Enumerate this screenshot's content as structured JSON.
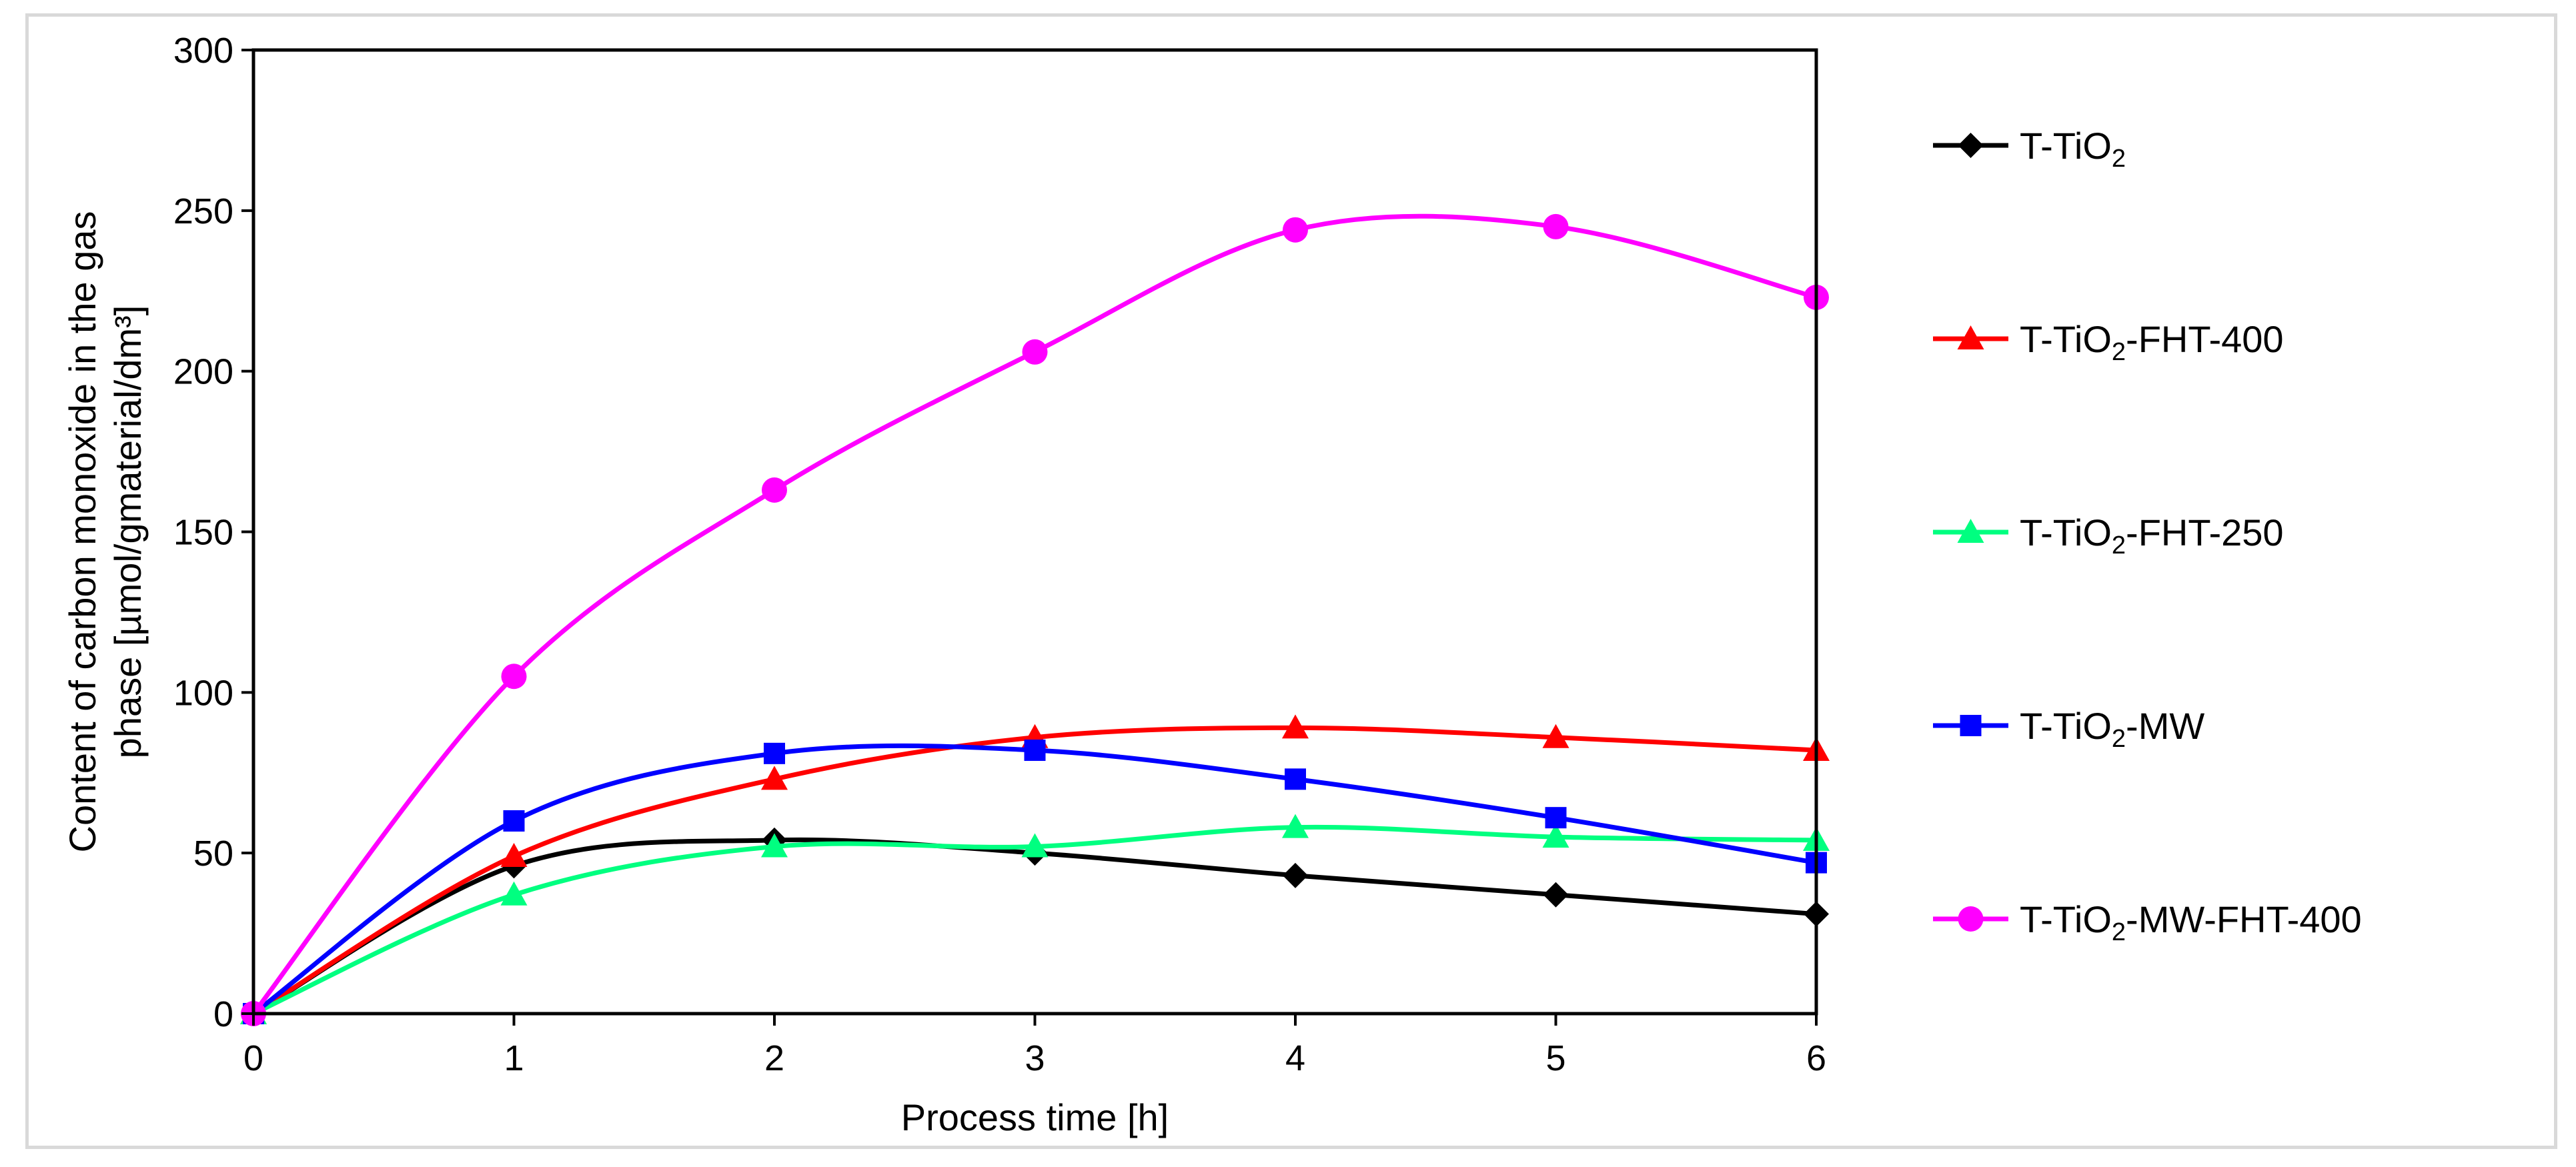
{
  "chart_data": {
    "type": "line",
    "title": "",
    "xlabel": "Process time [h]",
    "ylabel_lines": [
      "Content of carbon monoxide in the gas",
      "phase [µmol/gmaterial/dm³]"
    ],
    "x": [
      0,
      1,
      2,
      3,
      4,
      5,
      6
    ],
    "xlim": [
      0,
      6
    ],
    "ylim": [
      0,
      300
    ],
    "x_ticks": [
      "0",
      "1",
      "2",
      "3",
      "4",
      "5",
      "6"
    ],
    "y_ticks": [
      "0",
      "50",
      "100",
      "150",
      "200",
      "250",
      "300"
    ],
    "grid": false,
    "legend_position": "right",
    "series": [
      {
        "name": "T-TiO2",
        "label_base": "T-TiO",
        "label_sub": "2",
        "label_suffix": "",
        "color": "#000000",
        "marker": "diamond",
        "values": [
          0,
          46,
          54,
          50,
          43,
          37,
          31
        ]
      },
      {
        "name": "T-TiO2-FHT-400",
        "label_base": "T-TiO",
        "label_sub": "2",
        "label_suffix": "-FHT-400",
        "color": "#ff0000",
        "marker": "triangle",
        "values": [
          0,
          49,
          73,
          86,
          89,
          86,
          82
        ]
      },
      {
        "name": "T-TiO2-FHT-250",
        "label_base": "T-TiO",
        "label_sub": "2",
        "label_suffix": "-FHT-250",
        "color": "#00ff80",
        "marker": "triangle",
        "values": [
          0,
          37,
          52,
          52,
          58,
          55,
          54
        ]
      },
      {
        "name": "T-TiO2-MW",
        "label_base": "T-TiO",
        "label_sub": "2",
        "label_suffix": "-MW",
        "color": "#0000ff",
        "marker": "square",
        "values": [
          0,
          60,
          81,
          82,
          73,
          61,
          47
        ]
      },
      {
        "name": "T-TiO2-MW-FHT-400",
        "label_base": "T-TiO",
        "label_sub": "2",
        "label_suffix": "-MW-FHT-400",
        "color": "#ff00ff",
        "marker": "circle",
        "values": [
          0,
          105,
          163,
          206,
          244,
          245,
          223
        ]
      }
    ]
  }
}
